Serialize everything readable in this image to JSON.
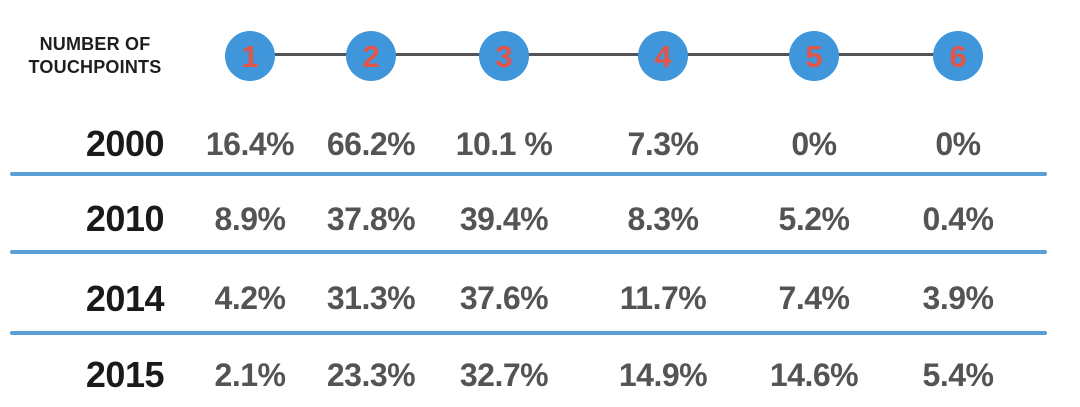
{
  "header": {
    "title_line1": "NUMBER OF",
    "title_line2": "TOUCHPOINTS",
    "touchpoints": [
      {
        "label": "1"
      },
      {
        "label": "2"
      },
      {
        "label": "3"
      },
      {
        "label": "4"
      },
      {
        "label": "5"
      },
      {
        "label": "6"
      }
    ]
  },
  "rows": [
    {
      "year": "2000",
      "values": [
        "16.4%",
        "66.2%",
        "10.1 %",
        "7.3%",
        "0%",
        "0%"
      ]
    },
    {
      "year": "2010",
      "values": [
        "8.9%",
        "37.8%",
        "39.4%",
        "8.3%",
        "5.2%",
        "0.4%"
      ]
    },
    {
      "year": "2014",
      "values": [
        "4.2%",
        "31.3%",
        "37.6%",
        "11.7%",
        "7.4%",
        "3.9%"
      ]
    },
    {
      "year": "2015",
      "values": [
        "2.1%",
        "23.3%",
        "32.7%",
        "14.9%",
        "14.6%",
        "5.4%"
      ]
    }
  ],
  "colors": {
    "circle_blue": "#3F96DB",
    "touchpoint_number_red": "#E25649",
    "divider_blue": "#5C9FD6",
    "connector_gray": "#545456",
    "year_text": "#1A1A1A",
    "percent_text": "#545457",
    "background": "#FFFFFF"
  },
  "chart_data": {
    "type": "table",
    "title": "Number of Touchpoints",
    "columns": [
      "1",
      "2",
      "3",
      "4",
      "5",
      "6"
    ],
    "row_labels": [
      "2000",
      "2010",
      "2014",
      "2015"
    ],
    "unit": "%",
    "series": [
      {
        "name": "2000",
        "values": [
          16.4,
          66.2,
          10.1,
          7.3,
          0,
          0
        ]
      },
      {
        "name": "2010",
        "values": [
          8.9,
          37.8,
          39.4,
          8.3,
          5.2,
          0.4
        ]
      },
      {
        "name": "2014",
        "values": [
          4.2,
          31.3,
          37.6,
          11.7,
          7.4,
          3.9
        ]
      },
      {
        "name": "2015",
        "values": [
          2.1,
          23.3,
          32.7,
          14.9,
          14.6,
          5.4
        ]
      }
    ]
  }
}
